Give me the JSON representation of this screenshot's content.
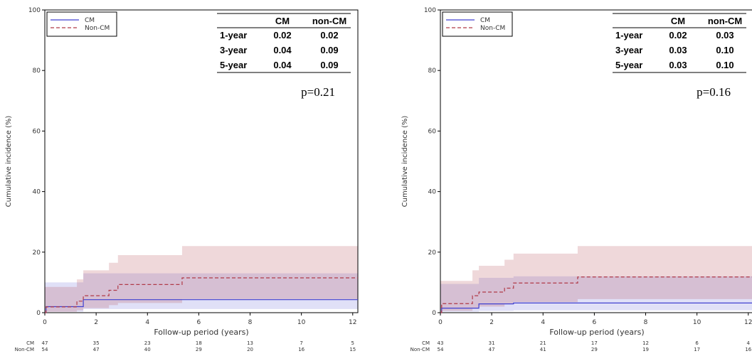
{
  "chart_data": [
    {
      "type": "line",
      "step": true,
      "xlabel": "Follow-up period (years)",
      "ylabel": "Cumulative incidence (%)",
      "xlim": [
        0,
        12.2
      ],
      "ylim": [
        0,
        100
      ],
      "xticks": [
        "0",
        "2",
        "4",
        "6",
        "8",
        "10",
        "12"
      ],
      "yticks": [
        "0",
        "20",
        "40",
        "60",
        "80",
        "100"
      ],
      "legend": {
        "position": "top-left",
        "entries": [
          "CM",
          "Non-CM"
        ]
      },
      "grid": false,
      "series": [
        {
          "name": "CM",
          "color": "#4040d0",
          "style": "solid",
          "x": [
            0,
            0.05,
            1.5,
            12.2
          ],
          "y": [
            0,
            2,
            4.3,
            4.3
          ],
          "ci_upper": [
            10,
            10,
            13,
            13
          ],
          "ci_lower": [
            0,
            0.3,
            1.2,
            1.2
          ]
        },
        {
          "name": "Non-CM",
          "color": "#b03a48",
          "style": "dashed",
          "x": [
            0,
            0.05,
            1.25,
            1.5,
            2.5,
            2.85,
            5.35,
            12.2
          ],
          "y": [
            0,
            1.9,
            3.8,
            5.6,
            7.4,
            9.3,
            11.5,
            11.5
          ],
          "ci_upper": [
            8.5,
            8.5,
            11,
            14,
            16.5,
            19,
            22,
            22
          ],
          "ci_lower": [
            0,
            0.3,
            0.8,
            1.5,
            2.5,
            3.2,
            4.5,
            4.5
          ]
        }
      ],
      "table": {
        "headers": [
          "",
          "CM",
          "non-CM"
        ],
        "rows": [
          [
            "1-year",
            "0.02",
            "0.02"
          ],
          [
            "3-year",
            "0.04",
            "0.09"
          ],
          [
            "5-year",
            "0.04",
            "0.09"
          ]
        ]
      },
      "pvalue": "p=0.21",
      "risk_table": {
        "times": [
          0,
          2,
          4,
          6,
          8,
          10,
          12
        ],
        "rows": [
          {
            "label": "CM",
            "values": [
              "47",
              "35",
              "23",
              "18",
              "13",
              "7",
              "5"
            ]
          },
          {
            "label": "Non-CM",
            "values": [
              "54",
              "47",
              "40",
              "29",
              "20",
              "16",
              "15"
            ]
          }
        ]
      }
    },
    {
      "type": "line",
      "step": true,
      "xlabel": "Follow-up period (years)",
      "ylabel": "Cumulative incidence (%)",
      "xlim": [
        0,
        12.2
      ],
      "ylim": [
        0,
        100
      ],
      "xticks": [
        "0",
        "2",
        "4",
        "6",
        "8",
        "10",
        "12"
      ],
      "yticks": [
        "0",
        "20",
        "40",
        "60",
        "80",
        "100"
      ],
      "legend": {
        "position": "top-left",
        "entries": [
          "CM",
          "Non-CM"
        ]
      },
      "grid": false,
      "series": [
        {
          "name": "CM",
          "color": "#4040d0",
          "style": "solid",
          "x": [
            0,
            0.05,
            1.5,
            2.85,
            12.2
          ],
          "y": [
            0,
            1.5,
            2.9,
            3.2,
            3.2
          ],
          "ci_upper": [
            9.5,
            9.5,
            11.5,
            12,
            12
          ],
          "ci_lower": [
            0,
            0.3,
            0.6,
            0.8,
            0.8
          ]
        },
        {
          "name": "Non-CM",
          "color": "#b03a48",
          "style": "dashed",
          "x": [
            0,
            0.05,
            1.25,
            1.5,
            2.5,
            2.85,
            5.35,
            12.2
          ],
          "y": [
            0,
            3,
            5.6,
            6.8,
            8.1,
            9.8,
            11.8,
            11.8
          ],
          "ci_upper": [
            10.5,
            10.5,
            14,
            15.5,
            17.5,
            19.5,
            22,
            22
          ],
          "ci_lower": [
            0,
            0.6,
            1.3,
            2,
            2.8,
            3.5,
            4.5,
            4.5
          ]
        }
      ],
      "table": {
        "headers": [
          "",
          "CM",
          "non-CM"
        ],
        "rows": [
          [
            "1-year",
            "0.02",
            "0.03"
          ],
          [
            "3-year",
            "0.03",
            "0.10"
          ],
          [
            "5-year",
            "0.03",
            "0.10"
          ]
        ]
      },
      "pvalue": "p=0.16",
      "risk_table": {
        "times": [
          0,
          2,
          4,
          6,
          8,
          10,
          12
        ],
        "rows": [
          {
            "label": "CM",
            "values": [
              "43",
              "31",
              "21",
              "17",
              "12",
              "6",
              "4"
            ]
          },
          {
            "label": "Non-CM",
            "values": [
              "54",
              "47",
              "41",
              "29",
              "19",
              "17",
              "16"
            ]
          }
        ]
      }
    }
  ]
}
